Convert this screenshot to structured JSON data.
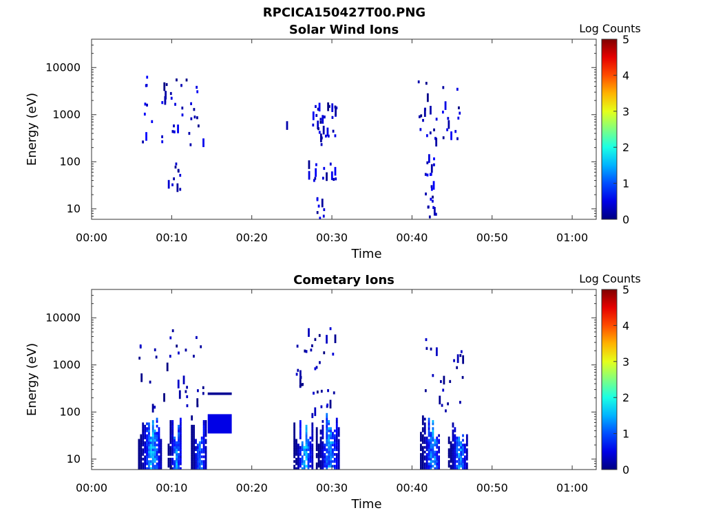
{
  "figure": {
    "title": "RPCICA150427T00.PNG"
  },
  "chart_data": [
    {
      "type": "heatmap",
      "title": "Solar Wind Ions",
      "xlabel": "Time",
      "ylabel": "Energy (eV)",
      "x_ticks": [
        "00:00",
        "00:10",
        "00:20",
        "00:30",
        "00:40",
        "00:50",
        "01:00"
      ],
      "y_ticks": [
        "10",
        "100",
        "1000",
        "10000"
      ],
      "y_scale": "log",
      "xlim_minutes": [
        0,
        63
      ],
      "ylim": [
        6,
        40000
      ],
      "colorbar": {
        "label": "Log Counts",
        "ticks": [
          "0",
          "1",
          "2",
          "3",
          "4",
          "5"
        ],
        "range": [
          0,
          5
        ],
        "colormap": "jet"
      },
      "clusters": [
        {
          "t": [
            6.0,
            14.0
          ],
          "e": [
            200,
            7000
          ],
          "n": 40,
          "max": 0.7,
          "seed": 11
        },
        {
          "t": [
            9.5,
            11.0
          ],
          "e": [
            25,
            90
          ],
          "n": 10,
          "max": 0.5,
          "seed": 12
        },
        {
          "t": [
            24.0,
            24.5
          ],
          "e": [
            500,
            600
          ],
          "n": 1,
          "max": 0.4,
          "seed": 13
        },
        {
          "t": [
            27.5,
            30.5
          ],
          "e": [
            200,
            1500
          ],
          "n": 30,
          "max": 0.6,
          "seed": 14
        },
        {
          "t": [
            27.0,
            30.5
          ],
          "e": [
            40,
            90
          ],
          "n": 14,
          "max": 0.6,
          "seed": 15
        },
        {
          "t": [
            28.0,
            29.0
          ],
          "e": [
            6,
            20
          ],
          "n": 8,
          "max": 0.6,
          "seed": 16
        },
        {
          "t": [
            40.5,
            46.0
          ],
          "e": [
            250,
            5000
          ],
          "n": 30,
          "max": 0.6,
          "seed": 17
        },
        {
          "t": [
            41.5,
            43.0
          ],
          "e": [
            6,
            130
          ],
          "n": 22,
          "max": 0.7,
          "seed": 18
        }
      ]
    },
    {
      "type": "heatmap",
      "title": "Cometary Ions",
      "xlabel": "Time",
      "ylabel": "Energy (eV)",
      "x_ticks": [
        "00:00",
        "00:10",
        "00:20",
        "00:30",
        "00:40",
        "00:50",
        "01:00"
      ],
      "y_ticks": [
        "10",
        "100",
        "1000",
        "10000"
      ],
      "y_scale": "log",
      "xlim_minutes": [
        0,
        63
      ],
      "ylim": [
        6,
        40000
      ],
      "colorbar": {
        "label": "Log Counts",
        "ticks": [
          "0",
          "1",
          "2",
          "3",
          "4",
          "5"
        ],
        "range": [
          0,
          5
        ],
        "colormap": "jet"
      },
      "columns": [
        {
          "t": [
            5.8,
            8.6
          ],
          "e": [
            6,
            90
          ],
          "max": 1.8,
          "seed": 21
        },
        {
          "t": [
            9.5,
            11.2
          ],
          "e": [
            6,
            90
          ],
          "max": 1.6,
          "seed": 22
        },
        {
          "t": [
            12.4,
            14.2
          ],
          "e": [
            6,
            90
          ],
          "max": 1.5,
          "seed": 23
        },
        {
          "t": [
            25.2,
            27.5
          ],
          "e": [
            6,
            90
          ],
          "max": 1.8,
          "seed": 24
        },
        {
          "t": [
            28.0,
            30.8
          ],
          "e": [
            6,
            90
          ],
          "max": 1.6,
          "seed": 25
        },
        {
          "t": [
            41.0,
            43.5
          ],
          "e": [
            6,
            90
          ],
          "max": 1.7,
          "seed": 26
        },
        {
          "t": [
            44.5,
            46.8
          ],
          "e": [
            6,
            90
          ],
          "max": 1.6,
          "seed": 27
        }
      ],
      "bands": [
        {
          "t": [
            14.5,
            17.5
          ],
          "e": [
            35,
            90
          ],
          "value": 0.5
        },
        {
          "t": [
            14.5,
            17.5
          ],
          "e": [
            230,
            260
          ],
          "value": 0.1
        }
      ],
      "clusters": [
        {
          "t": [
            5.8,
            14.0
          ],
          "e": [
            100,
            6000
          ],
          "n": 32,
          "max": 0.4,
          "seed": 31
        },
        {
          "t": [
            25.5,
            30.5
          ],
          "e": [
            100,
            6000
          ],
          "n": 34,
          "max": 0.5,
          "seed": 32
        },
        {
          "t": [
            41.5,
            46.5
          ],
          "e": [
            100,
            4000
          ],
          "n": 22,
          "max": 0.4,
          "seed": 33
        }
      ]
    }
  ]
}
